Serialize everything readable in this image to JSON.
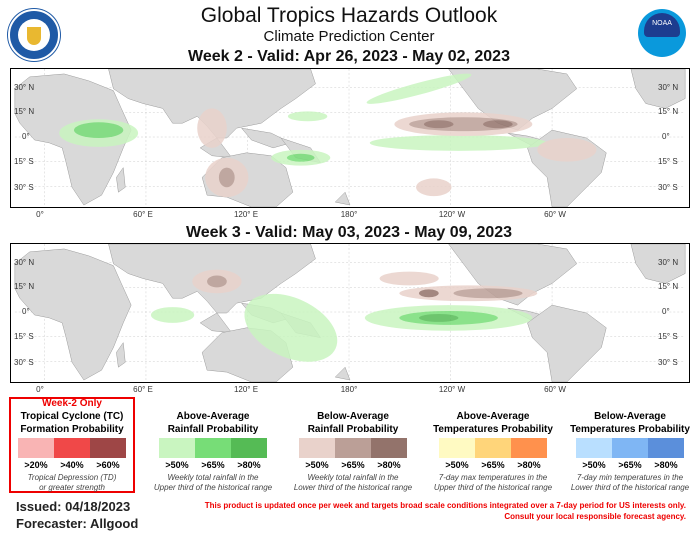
{
  "header": {
    "title": "Global Tropics Hazards Outlook",
    "subtitle": "Climate Prediction Center",
    "left_logo": "department-of-commerce-seal",
    "right_logo": "noaa-logo",
    "noaa_text": "NOAA"
  },
  "maps": [
    {
      "title": "Week 2 - Valid: Apr 26, 2023 - May 02, 2023"
    },
    {
      "title": "Week 3 - Valid: May 03, 2023 - May 09, 2023"
    }
  ],
  "lat_labels": [
    "30° N",
    "15° N",
    "0°",
    "15° S",
    "30° S"
  ],
  "lat_labels_right": [
    "30° N",
    "15° N",
    "0°",
    "15° S",
    "30° S"
  ],
  "lon_labels": [
    "0°",
    "60° E",
    "120° E",
    "180°",
    "120° W",
    "60° W"
  ],
  "legends": [
    {
      "tag": "Week-2 Only",
      "title1": "Tropical Cyclone (TC)",
      "title2": "Formation Probability",
      "colors": [
        "#f9b4b4",
        "#f04848",
        "#9e4646"
      ],
      "labels": [
        ">20%",
        ">40%",
        ">60%"
      ],
      "note1": "Tropical Depression (TD)",
      "note2": "or greater strength"
    },
    {
      "title1": "Above-Average",
      "title2": "Rainfall Probability",
      "colors": [
        "#c9f5c0",
        "#77dd77",
        "#55bb55"
      ],
      "labels": [
        ">50%",
        ">65%",
        ">80%"
      ],
      "note1": "Weekly total rainfall in the",
      "note2": "Upper third of the historical range"
    },
    {
      "title1": "Below-Average",
      "title2": "Rainfall Probability",
      "colors": [
        "#e9d2cb",
        "#bb9f97",
        "#93736b"
      ],
      "labels": [
        ">50%",
        ">65%",
        ">80%"
      ],
      "note1": "Weekly total rainfall in the",
      "note2": "Lower third of the historical range"
    },
    {
      "title1": "Above-Average",
      "title2": "Temperatures Probability",
      "colors": [
        "#fffac2",
        "#ffd57a",
        "#ff914d"
      ],
      "labels": [
        ">50%",
        ">65%",
        ">80%"
      ],
      "note1": "7-day max temperatures in the",
      "note2": "Upper third of the historical range"
    },
    {
      "title1": "Below-Average",
      "title2": "Temperatures Probability",
      "colors": [
        "#b9dfff",
        "#7fb6f4",
        "#5b8fdb"
      ],
      "labels": [
        ">50%",
        ">65%",
        ">80%"
      ],
      "note1": "7-day min temperatures in the",
      "note2": "Lower third of the historical range"
    }
  ],
  "footer": {
    "issued": "Issued: 04/18/2023",
    "forecaster": "Forecaster: Allgood",
    "disclaimer1": "This product is updated once per week and targets broad scale conditions integrated over a 7-day period for US interests only.",
    "disclaimer2": "Consult your local responsible forecast agency."
  }
}
